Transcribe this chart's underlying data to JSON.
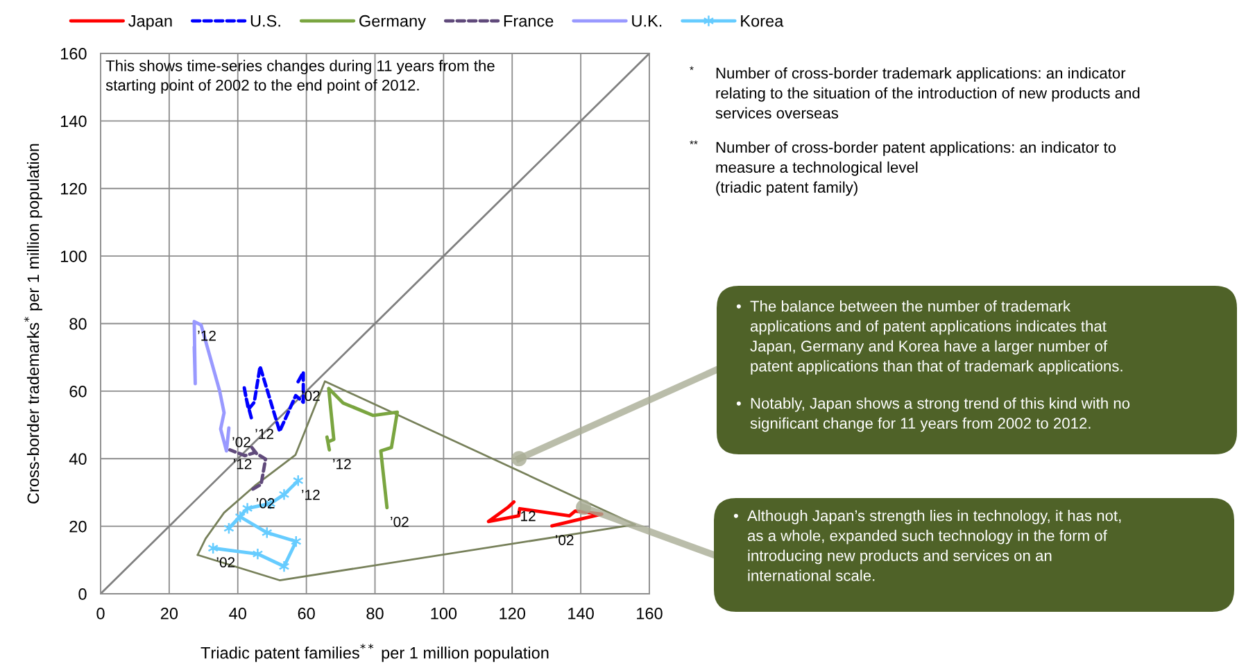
{
  "chart_data": {
    "type": "line",
    "xlabel": "Triadic patent families$^{**}$ per 1 million population",
    "ylabel": "Cross-border trademarks$^{*}$ per 1 million population",
    "xlim": [
      0,
      160
    ],
    "ylim": [
      0,
      160
    ],
    "xticks": [
      0,
      20,
      40,
      60,
      80,
      100,
      120,
      140,
      160
    ],
    "yticks": [
      0,
      20,
      40,
      60,
      80,
      100,
      120,
      140,
      160
    ],
    "grid": true,
    "legend": "top",
    "series": [
      {
        "color": "#808080",
        "x": [
          0,
          160
        ],
        "values": [
          0,
          160
        ]
      },
      {
        "color": "#77805a",
        "x": [
          28.3,
          30.6,
          36,
          45,
          56.8,
          65.4,
          155.8
        ],
        "values": [
          11.5,
          16.3,
          24,
          32,
          41.1,
          62.9,
          20.5
        ]
      },
      {
        "color": "#77805a",
        "x": [
          28.3,
          52.2,
          155.8
        ],
        "values": [
          11.5,
          4.0,
          20.5
        ]
      },
      {
        "name": "Japan",
        "color": "#ff0000",
        "line_style": "solid",
        "x": [
          131.6,
          146.1,
          138.4,
          136.7,
          122.2,
          121.9,
          113.1,
          118.9,
          120.5
        ],
        "values": [
          20.1,
          23.6,
          24.5,
          23.1,
          25.2,
          23.1,
          21.4,
          25.7,
          27.2
        ]
      },
      {
        "name": "U.S.",
        "color": "#0000ff",
        "line_style": "dashed",
        "x": [
          57.6,
          59.1,
          59.1,
          56.9,
          52.2,
          46.5,
          44.8,
          43.1,
          41.8,
          42.4,
          44.1
        ],
        "values": [
          62.8,
          65.6,
          56.7,
          58.7,
          48.1,
          67.3,
          56.7,
          54.6,
          61.5,
          58.0,
          51.5
        ]
      },
      {
        "name": "Germany",
        "color": "#7aa540",
        "line_style": "solid",
        "x": [
          83.5,
          81.7,
          84.8,
          86.5,
          79.5,
          70.7,
          66.5,
          68.0,
          66.3,
          66.0,
          66.7
        ],
        "values": [
          25.5,
          42.3,
          43.3,
          53.8,
          52.8,
          56.5,
          60.8,
          45.7,
          45.0,
          46.4,
          42.6
        ]
      },
      {
        "name": "France",
        "color": "#604a7b",
        "line_style": "dashed",
        "x": [
          44.4,
          46.8,
          48.1,
          45.5,
          44.1,
          45.0,
          42.1,
          37.7
        ],
        "values": [
          31.0,
          32.4,
          39.9,
          41.5,
          43.3,
          41.8,
          40.9,
          42.6
        ]
      },
      {
        "name": "U.K.",
        "color": "#9999ff",
        "line_style": "solid",
        "x": [
          37.4,
          36.7,
          35.0,
          36.0,
          34.7,
          29.3,
          27.3,
          27.6,
          27.3
        ],
        "values": [
          49.1,
          42.3,
          48.8,
          53.6,
          60.1,
          79.6,
          80.6,
          62.2,
          73.1
        ]
      },
      {
        "name": "Korea",
        "color": "#66ccff",
        "line_style": "solid",
        "marker": "cross",
        "x": [
          32.8,
          45.8,
          53.5,
          57.0,
          48.5,
          40.7,
          37.4,
          42.8,
          49.5,
          53.5,
          57.6
        ],
        "values": [
          13.5,
          11.8,
          8.1,
          15.5,
          18.1,
          22.8,
          19.4,
          25.3,
          26.7,
          29.4,
          33.5
        ]
      }
    ],
    "annotations": [
      "This shows time-series changes during 11 years from the\nstarting point of 2002 to the end point of 2012.",
      "* Number of cross-border trademark applications: an indicator\nrelating to the situation of the introduction of new products and\nservices overseas",
      "** Number of cross-border patent applications: an indicator to\nmeasure a technological level\n(triadic patent family)",
      "• The balance between the number of trademark\napplications and of patent applications indicates that\nJapan, Germany and Korea have a larger number of\npatent applications than that of trademark applications.",
      "• Notably, Japan shows a strong trend of this kind with no\nsignificant change for 11 years from 2002 to 2012.",
      "• Although Japan’s strength lies in technology, it has not,\nas a whole, expanded such technology in the form of\nintroducing new products and services on an\ninternational scale.",
      {
        "text": "’02",
        "x": 131.6,
        "y": 20.1
      },
      {
        "text": "’12",
        "x": 120.5,
        "y": 27.2
      },
      {
        "text": "’02",
        "x": 57.6,
        "y": 62.8
      },
      {
        "text": "’12",
        "x": 44.1,
        "y": 51.5
      },
      {
        "text": "’02",
        "x": 83.5,
        "y": 25.5
      },
      {
        "text": "’12",
        "x": 66.7,
        "y": 42.6
      },
      {
        "text": "’02",
        "x": 44.4,
        "y": 31.0
      },
      {
        "text": "’12",
        "x": 37.7,
        "y": 42.6
      },
      {
        "text": "’02",
        "x": 37.4,
        "y": 49.1
      },
      {
        "text": "’12",
        "x": 27.3,
        "y": 80.6
      },
      {
        "text": "’02",
        "x": 32.8,
        "y": 13.5
      },
      {
        "text": "’12",
        "x": 57.6,
        "y": 33.5
      }
    ]
  }
}
